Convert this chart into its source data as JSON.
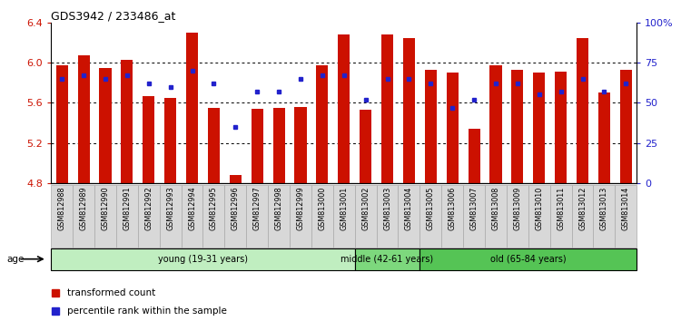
{
  "title": "GDS3942 / 233486_at",
  "samples": [
    "GSM812988",
    "GSM812989",
    "GSM812990",
    "GSM812991",
    "GSM812992",
    "GSM812993",
    "GSM812994",
    "GSM812995",
    "GSM812996",
    "GSM812997",
    "GSM812998",
    "GSM812999",
    "GSM813000",
    "GSM813001",
    "GSM813002",
    "GSM813003",
    "GSM813004",
    "GSM813005",
    "GSM813006",
    "GSM813007",
    "GSM813008",
    "GSM813009",
    "GSM813010",
    "GSM813011",
    "GSM813012",
    "GSM813013",
    "GSM813014"
  ],
  "red_values": [
    5.97,
    6.07,
    5.95,
    6.03,
    5.67,
    5.65,
    6.3,
    5.55,
    4.88,
    5.54,
    5.55,
    5.56,
    5.97,
    6.28,
    5.53,
    6.28,
    6.24,
    5.93,
    5.9,
    5.34,
    5.97,
    5.93,
    5.9,
    5.91,
    6.24,
    5.7,
    5.93
  ],
  "blue_percent": [
    65,
    67,
    65,
    67,
    62,
    60,
    70,
    62,
    35,
    57,
    57,
    65,
    67,
    67,
    52,
    65,
    65,
    62,
    47,
    52,
    62,
    62,
    55,
    57,
    65,
    57,
    62
  ],
  "groups": [
    {
      "label": "young (19-31 years)",
      "start": 0,
      "end": 14,
      "color": "#c0eec0"
    },
    {
      "label": "middle (42-61 years)",
      "start": 14,
      "end": 17,
      "color": "#7dd87d"
    },
    {
      "label": "old (65-84 years)",
      "start": 17,
      "end": 27,
      "color": "#55c455"
    }
  ],
  "ylim_left": [
    4.8,
    6.4
  ],
  "ylim_right": [
    0,
    100
  ],
  "yticks_left": [
    4.8,
    5.2,
    5.6,
    6.0,
    6.4
  ],
  "yticks_right": [
    0,
    25,
    50,
    75,
    100
  ],
  "ytick_labels_right": [
    "0",
    "25",
    "50",
    "75",
    "100%"
  ],
  "bar_color": "#cc1100",
  "blue_color": "#2222cc",
  "bar_width": 0.55,
  "base": 4.8
}
